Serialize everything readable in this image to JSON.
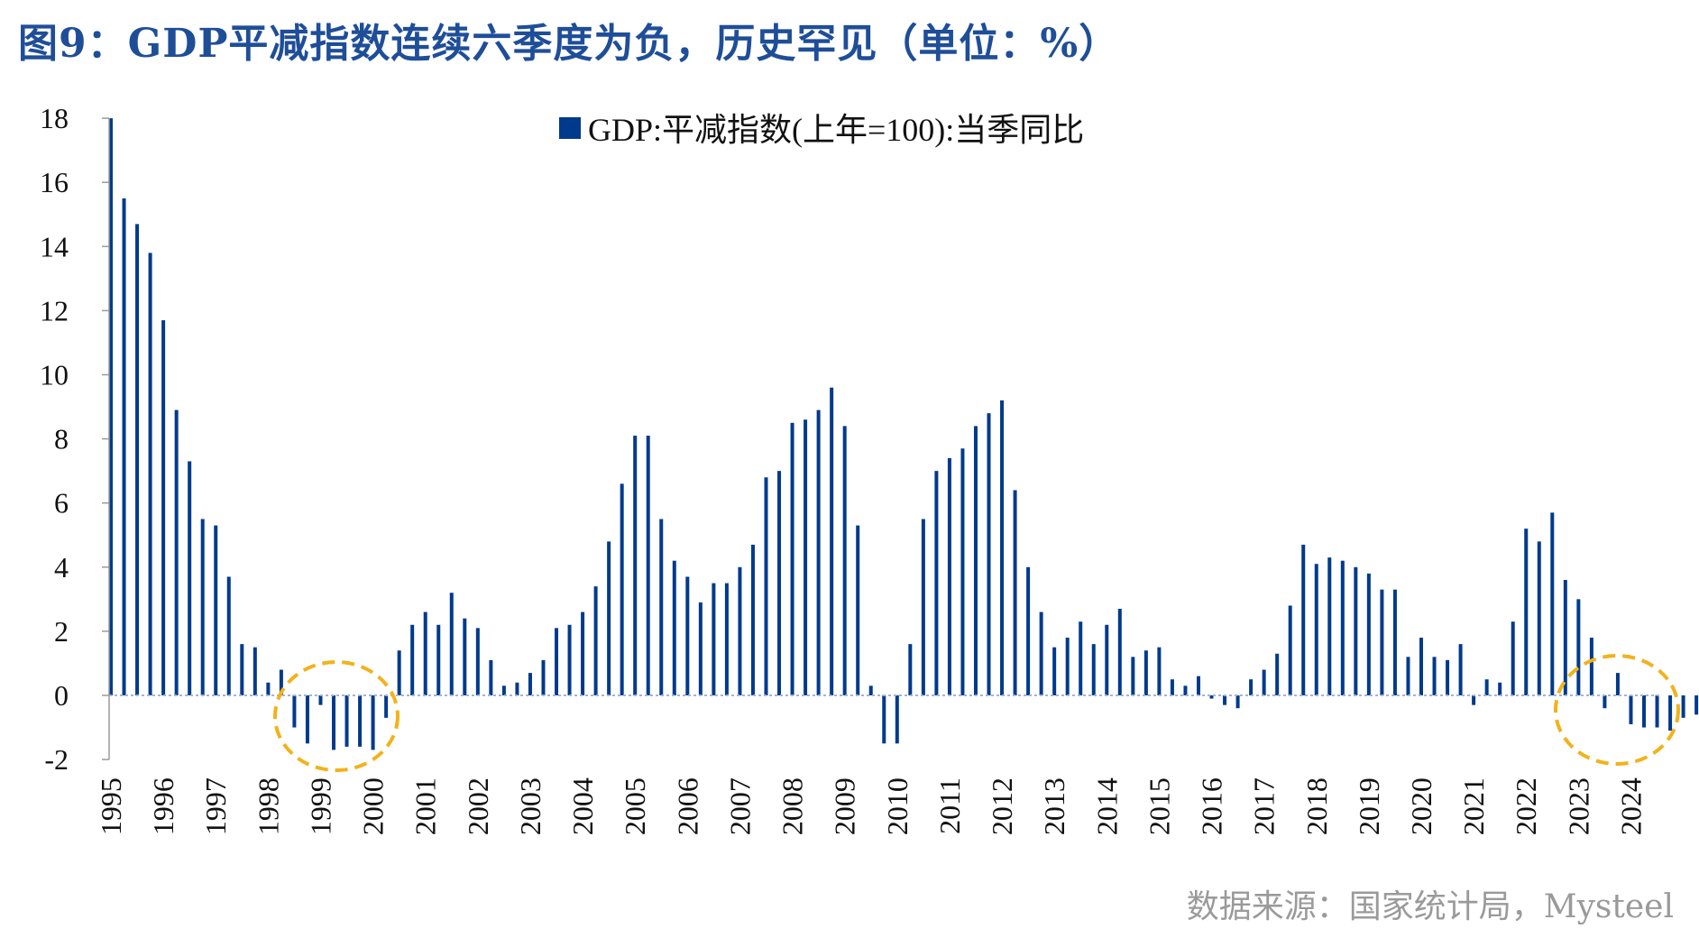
{
  "title": "图9：GDP平减指数连续六季度为负，历史罕见（单位：%）",
  "source": "数据来源：国家统计局，Mysteel",
  "colors": {
    "bar": "#003a8c",
    "title": "#1f4e99",
    "highlight": "#f2b21c",
    "zero_line": "#a0b4d6"
  },
  "chart_data": {
    "type": "bar",
    "title": "图9：GDP平减指数连续六季度为负，历史罕见（单位：%）",
    "xlabel": "",
    "ylabel": "",
    "ylim": [
      -2,
      18
    ],
    "yticks": [
      -2,
      0,
      2,
      4,
      6,
      8,
      10,
      12,
      14,
      16,
      18
    ],
    "xticks": [
      "1995",
      "1996",
      "1997",
      "1998",
      "1999",
      "2000",
      "2001",
      "2002",
      "2003",
      "2004",
      "2005",
      "2006",
      "2007",
      "2008",
      "2009",
      "2010",
      "2011",
      "2012",
      "2013",
      "2014",
      "2015",
      "2016",
      "2017",
      "2018",
      "2019",
      "2020",
      "2021",
      "2022",
      "2023",
      "2024"
    ],
    "grid": false,
    "legend": {
      "position": "top-center",
      "entries": [
        "GDP:平减指数(上年=100):当季同比"
      ]
    },
    "series": [
      {
        "name": "GDP:平减指数(上年=100):当季同比",
        "values": [
          18.0,
          15.5,
          14.7,
          13.8,
          11.7,
          8.9,
          7.3,
          5.5,
          5.3,
          3.7,
          1.6,
          1.5,
          0.4,
          0.8,
          -1.0,
          -1.5,
          -0.3,
          -1.7,
          -1.6,
          -1.6,
          -1.7,
          -0.7,
          1.4,
          2.2,
          2.6,
          2.2,
          3.2,
          2.4,
          2.1,
          1.1,
          0.3,
          0.4,
          0.7,
          1.1,
          2.1,
          2.2,
          2.6,
          3.4,
          4.8,
          6.6,
          8.1,
          8.1,
          5.5,
          4.2,
          3.7,
          2.9,
          3.5,
          3.5,
          4.0,
          4.7,
          6.8,
          7.0,
          8.5,
          8.6,
          8.9,
          9.6,
          8.4,
          5.3,
          0.3,
          -1.5,
          -1.5,
          1.6,
          5.5,
          7.0,
          7.4,
          7.7,
          8.4,
          8.8,
          9.2,
          6.4,
          4.0,
          2.6,
          1.5,
          1.8,
          2.3,
          1.6,
          2.2,
          2.7,
          1.2,
          1.4,
          1.5,
          0.5,
          0.3,
          0.6,
          -0.1,
          -0.3,
          -0.4,
          0.5,
          0.8,
          1.3,
          2.8,
          4.7,
          4.1,
          4.3,
          4.2,
          4.0,
          3.8,
          3.3,
          3.3,
          1.2,
          1.8,
          1.2,
          1.1,
          1.6,
          -0.3,
          0.5,
          0.4,
          2.3,
          5.2,
          4.8,
          5.7,
          3.6,
          3.0,
          1.8,
          -0.4,
          0.7,
          -0.9,
          -1.0,
          -1.0,
          -1.1,
          -0.7,
          -0.6
        ]
      }
    ],
    "highlights": [
      "1999",
      "2024"
    ]
  }
}
